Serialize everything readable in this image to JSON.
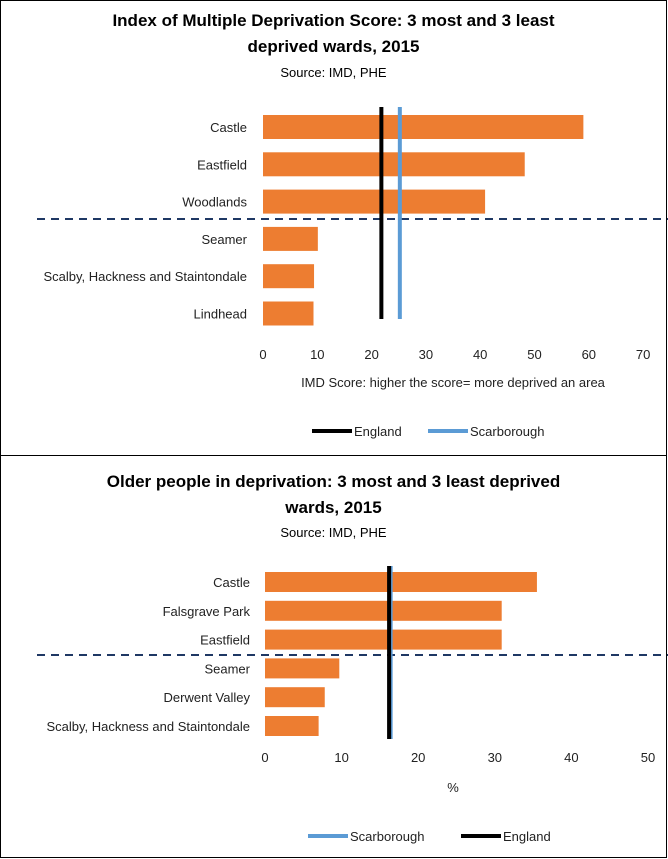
{
  "chart_data": [
    {
      "type": "bar",
      "orientation": "horizontal",
      "title_line1": "Index of Multiple Deprivation Score: 3 most and 3 least",
      "title_line2": "deprived wards, 2015",
      "subtitle": "Source: IMD, PHE",
      "categories": [
        "Castle",
        "Eastfield",
        "Woodlands",
        "Seamer",
        "Scalby, Hackness and Staintondale",
        "Lindhead"
      ],
      "values": [
        59,
        48.2,
        40.9,
        10.1,
        9.4,
        9.3
      ],
      "xlim": [
        0,
        70
      ],
      "xticks": [
        "0",
        "10",
        "20",
        "30",
        "40",
        "50",
        "60",
        "70"
      ],
      "xlabel": "IMD Score: higher the score= more deprived an area",
      "reference_lines": [
        {
          "name": "England",
          "value": 21.8,
          "color": "#000000"
        },
        {
          "name": "Scarborough",
          "value": 25.2,
          "color": "#5b9bd5"
        }
      ],
      "legend": [
        "England",
        "Scarborough"
      ],
      "legend_position": "bottom",
      "bar_color": "#ed7d31",
      "divider_color": "#1f3864"
    },
    {
      "type": "bar",
      "orientation": "horizontal",
      "title_line1": "Older people in deprivation: 3 most and 3 least deprived",
      "title_line2": "wards, 2015",
      "subtitle": "Source: IMD, PHE",
      "categories": [
        "Castle",
        "Falsgrave Park",
        "Eastfield",
        "Seamer",
        "Derwent Valley",
        "Scalby, Hackness and Staintondale"
      ],
      "values": [
        35.5,
        30.9,
        30.9,
        9.7,
        7.8,
        7.0
      ],
      "xlim": [
        0,
        50
      ],
      "xticks": [
        "0",
        "10",
        "20",
        "30",
        "40",
        "50"
      ],
      "xlabel": "%",
      "reference_lines": [
        {
          "name": "Scarborough",
          "value": 16.4,
          "color": "#5b9bd5"
        },
        {
          "name": "England",
          "value": 16.2,
          "color": "#000000"
        }
      ],
      "legend": [
        "Scarborough",
        "England"
      ],
      "legend_position": "bottom",
      "bar_color": "#ed7d31",
      "divider_color": "#1f3864"
    }
  ]
}
